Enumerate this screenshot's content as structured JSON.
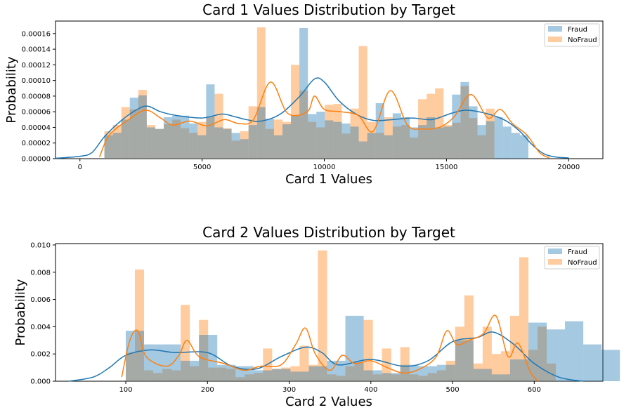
{
  "chart_data": [
    {
      "type": "bar",
      "subtype": "histogram-with-kde",
      "title": "Card 1 Values Distribution by Target",
      "xlabel": "Card 1 Values",
      "ylabel": "Probability",
      "xlim": [
        -1000,
        21400
      ],
      "ylim": [
        0,
        0.000176
      ],
      "xticks": [
        0,
        5000,
        10000,
        15000,
        20000
      ],
      "xtick_labels": [
        "0",
        "5000",
        "10000",
        "15000",
        "20000"
      ],
      "yticks": [
        0,
        2e-05,
        4e-05,
        6e-05,
        8e-05,
        0.0001,
        0.00012,
        0.00014,
        0.00016
      ],
      "ytick_labels": [
        "0.00000",
        "0.00002",
        "0.00004",
        "0.00006",
        "0.00008",
        "0.00010",
        "0.00012",
        "0.00014",
        "0.00016"
      ],
      "bin_start": 1000,
      "bin_width": 347,
      "grid": false,
      "legend_position": "top-right",
      "series": [
        {
          "name": "Fraud",
          "color": "#1f77b4",
          "values": [
            3e-05,
            3.3e-05,
            5e-05,
            7.8e-05,
            8.1e-05,
            4e-05,
            3.8e-05,
            5.3e-05,
            5.5e-05,
            5.5e-05,
            4.5e-05,
            3e-05,
            9.5e-05,
            4e-05,
            3.8e-05,
            3.3e-05,
            2.5e-05,
            4.3e-05,
            6.6e-05,
            5.1e-05,
            3e-05,
            4.4e-05,
            5.6e-05,
            0.000167,
            5.7e-05,
            6e-05,
            4.9e-05,
            4.7e-05,
            4.5e-05,
            4.1e-05,
            2.2e-05,
            3.3e-05,
            7.1e-05,
            3e-05,
            5.8e-05,
            5.3e-05,
            4e-05,
            4.3e-05,
            5.3e-05,
            4e-05,
            4.1e-05,
            8.2e-05,
            9.8e-05,
            6.7e-05,
            4.3e-05,
            4.8e-05,
            5.3e-05,
            4.1e-05,
            3.3e-05,
            3e-05
          ],
          "kde": [
            [
              -1000,
              5e-07
            ],
            [
              0,
              3e-06
            ],
            [
              500,
              8e-06
            ],
            [
              1000,
              2.8e-05
            ],
            [
              1700,
              4.9e-05
            ],
            [
              2400,
              6.4e-05
            ],
            [
              2800,
              6.7e-05
            ],
            [
              3300,
              6e-05
            ],
            [
              4000,
              5.5e-05
            ],
            [
              5000,
              5.2e-05
            ],
            [
              5800,
              5.7e-05
            ],
            [
              6300,
              5.4e-05
            ],
            [
              6800,
              5e-05
            ],
            [
              7400,
              4.8e-05
            ],
            [
              8200,
              5.7e-05
            ],
            [
              9000,
              8e-05
            ],
            [
              9600,
              0.000102
            ],
            [
              10000,
              9.8e-05
            ],
            [
              10600,
              7.4e-05
            ],
            [
              11300,
              5.7e-05
            ],
            [
              12000,
              4.9e-05
            ],
            [
              12800,
              5e-05
            ],
            [
              13600,
              5.2e-05
            ],
            [
              14400,
              5e-05
            ],
            [
              15200,
              5.8e-05
            ],
            [
              15800,
              6.2e-05
            ],
            [
              16600,
              5.8e-05
            ],
            [
              17400,
              4.9e-05
            ],
            [
              18000,
              3.5e-05
            ],
            [
              18500,
              1.8e-05
            ],
            [
              19000,
              6e-06
            ],
            [
              19500,
              2e-06
            ],
            [
              20000,
              1e-06
            ]
          ]
        },
        {
          "name": "NoFraud",
          "color": "#ff7f0e",
          "values": [
            3.5e-05,
            4.3e-05,
            6.6e-05,
            6.3e-05,
            8.8e-05,
            4.3e-05,
            3.8e-05,
            4.4e-05,
            5e-05,
            3.9e-05,
            3.3e-05,
            4.7e-05,
            5.4e-05,
            8.3e-05,
            3.9e-05,
            2.3e-05,
            3.5e-05,
            6.7e-05,
            0.000168,
            3.8e-05,
            5e-05,
            4.7e-05,
            0.00012,
            8.7e-05,
            4.7e-05,
            4e-05,
            6.9e-05,
            7e-05,
            3.2e-05,
            6.4e-05,
            0.000144,
            4.7e-05,
            3.3e-05,
            5.3e-05,
            4.1e-05,
            4.3e-05,
            2.7e-05,
            7.6e-05,
            8.3e-05,
            9e-05,
            4.3e-05,
            4.6e-05,
            9.3e-05,
            5.2e-05,
            3e-05,
            6.4e-05
          ],
          "kde": [
            [
              800,
              2e-06
            ],
            [
              1200,
              3e-05
            ],
            [
              2000,
              5e-05
            ],
            [
              2700,
              6.2e-05
            ],
            [
              3300,
              5.2e-05
            ],
            [
              3800,
              4.3e-05
            ],
            [
              4500,
              4.8e-05
            ],
            [
              5200,
              4.2e-05
            ],
            [
              5900,
              5e-05
            ],
            [
              6500,
              4.5e-05
            ],
            [
              7100,
              5e-05
            ],
            [
              7800,
              9.8e-05
            ],
            [
              8500,
              5.8e-05
            ],
            [
              9300,
              6e-05
            ],
            [
              9600,
              8e-05
            ],
            [
              10000,
              6.3e-05
            ],
            [
              10700,
              6e-05
            ],
            [
              11400,
              5.5e-05
            ],
            [
              12000,
              3.5e-05
            ],
            [
              12700,
              8.7e-05
            ],
            [
              13400,
              4.3e-05
            ],
            [
              14000,
              3.8e-05
            ],
            [
              14700,
              4e-05
            ],
            [
              15300,
              5.3e-05
            ],
            [
              16000,
              8.2e-05
            ],
            [
              16700,
              5.2e-05
            ],
            [
              17200,
              6.3e-05
            ],
            [
              17700,
              4.5e-05
            ],
            [
              18300,
              3e-05
            ],
            [
              18800,
              8e-06
            ],
            [
              19200,
              1e-06
            ]
          ]
        }
      ]
    },
    {
      "type": "bar",
      "subtype": "histogram-with-kde",
      "title": "Card 2 Values Distribution by Target",
      "xlabel": "Card 2 Values",
      "ylabel": "Probability",
      "xlim": [
        14,
        684
      ],
      "ylim": [
        0,
        0.0101
      ],
      "xticks": [
        100,
        200,
        300,
        400,
        500,
        600
      ],
      "xtick_labels": [
        "100",
        "200",
        "300",
        "400",
        "500",
        "600"
      ],
      "yticks": [
        0,
        0.002,
        0.004,
        0.006,
        0.008,
        0.01
      ],
      "ytick_labels": [
        "0.000",
        "0.002",
        "0.004",
        "0.006",
        "0.008",
        "0.010"
      ],
      "grid": false,
      "legend_position": "top-right",
      "series": [
        {
          "name": "Fraud",
          "color": "#1f77b4",
          "bin_start": 100,
          "bin_width": 22.4,
          "values": [
            0.0037,
            0.0027,
            0.0027,
            0.0015,
            0.0034,
            0.0012,
            0.0011,
            0.0008,
            0.0009,
            0.0007,
            0.0011,
            0.0015,
            0.0048,
            0.0008,
            0.0006,
            0.0012,
            0.0011,
            0.0012,
            0.003,
            0.0009,
            0.0005,
            0.0016,
            0.0043,
            0.0038,
            0.0044,
            0.0027,
            0.0023
          ],
          "kde": [
            [
              30,
              0.0
            ],
            [
              60,
              0.0003
            ],
            [
              80,
              0.001
            ],
            [
              100,
              0.0019
            ],
            [
              130,
              0.0023
            ],
            [
              160,
              0.0021
            ],
            [
              200,
              0.0021
            ],
            [
              230,
              0.0011
            ],
            [
              260,
              0.0009
            ],
            [
              290,
              0.0018
            ],
            [
              320,
              0.0025
            ],
            [
              340,
              0.0021
            ],
            [
              360,
              0.0012
            ],
            [
              400,
              0.0016
            ],
            [
              440,
              0.0011
            ],
            [
              470,
              0.0015
            ],
            [
              500,
              0.0029
            ],
            [
              530,
              0.0032
            ],
            [
              550,
              0.0036
            ],
            [
              575,
              0.0027
            ],
            [
              600,
              0.0013
            ],
            [
              630,
              0.0003
            ],
            [
              660,
              0.0
            ]
          ]
        },
        {
          "name": "NoFraud",
          "color": "#ff7f0e",
          "bin_start": 100,
          "bin_width": 11.2,
          "values": [
            0.0021,
            0.0082,
            0.0008,
            0.0006,
            0.0009,
            0.0008,
            0.0056,
            0.0011,
            0.0045,
            0.001,
            0.001,
            0.0009,
            0.0003,
            0.0005,
            0.0006,
            0.0024,
            0.0009,
            0.001,
            0.0011,
            0.0026,
            0.0012,
            0.0096,
            0.0005,
            0.0004,
            0.0011,
            0.0014,
            0.0045,
            0.0005,
            0.0024,
            0.0005,
            0.0025,
            0.0005,
            0.0004,
            0.0006,
            0.0008,
            0.0015,
            0.004,
            0.0063,
            0.0013,
            0.004,
            0.002,
            0.0022,
            0.0048,
            0.0091,
            0.0023,
            0.004,
            0.0013
          ],
          "kde": [
            [
              95,
              0.0003
            ],
            [
              105,
              0.003
            ],
            [
              115,
              0.0037
            ],
            [
              125,
              0.0018
            ],
            [
              150,
              0.0011
            ],
            [
              165,
              0.0019
            ],
            [
              175,
              0.003
            ],
            [
              190,
              0.0018
            ],
            [
              220,
              0.0013
            ],
            [
              245,
              0.0008
            ],
            [
              265,
              0.0011
            ],
            [
              290,
              0.0012
            ],
            [
              308,
              0.0027
            ],
            [
              320,
              0.0039
            ],
            [
              332,
              0.002
            ],
            [
              350,
              0.0008
            ],
            [
              365,
              0.0019
            ],
            [
              380,
              0.0013
            ],
            [
              400,
              0.0015
            ],
            [
              420,
              0.001
            ],
            [
              440,
              0.0006
            ],
            [
              460,
              0.0009
            ],
            [
              480,
              0.0018
            ],
            [
              493,
              0.0037
            ],
            [
              505,
              0.0027
            ],
            [
              520,
              0.003
            ],
            [
              538,
              0.0035
            ],
            [
              553,
              0.0048
            ],
            [
              568,
              0.0018
            ],
            [
              580,
              0.0028
            ],
            [
              595,
              0.0007
            ],
            [
              605,
              0.0
            ]
          ]
        }
      ]
    }
  ]
}
